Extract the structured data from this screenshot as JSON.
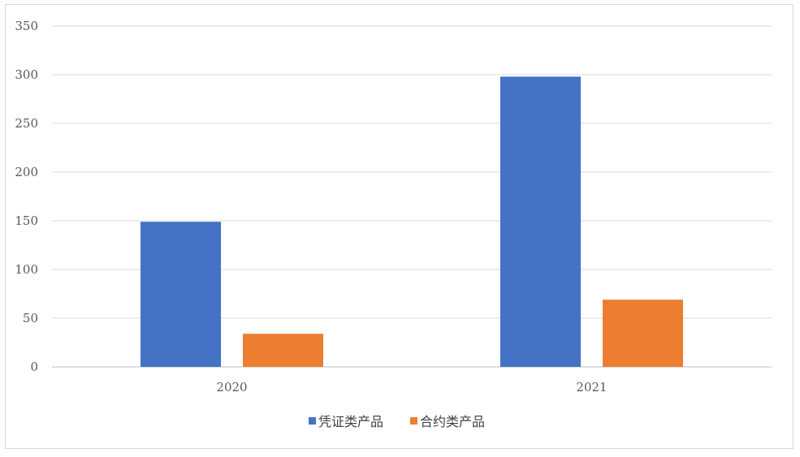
{
  "chart_data": {
    "type": "bar",
    "title": "",
    "xlabel": "",
    "ylabel": "",
    "categories": [
      "2020",
      "2021"
    ],
    "series": [
      {
        "name": "凭证类产品",
        "color": "#4472c4",
        "values": [
          149,
          298
        ]
      },
      {
        "name": "合约类产品",
        "color": "#ed7d31",
        "values": [
          34,
          69
        ]
      }
    ],
    "ylim": [
      0,
      350
    ],
    "yticks": [
      0,
      50,
      100,
      150,
      200,
      250,
      300,
      350
    ],
    "grid": true,
    "legend_position": "bottom"
  }
}
